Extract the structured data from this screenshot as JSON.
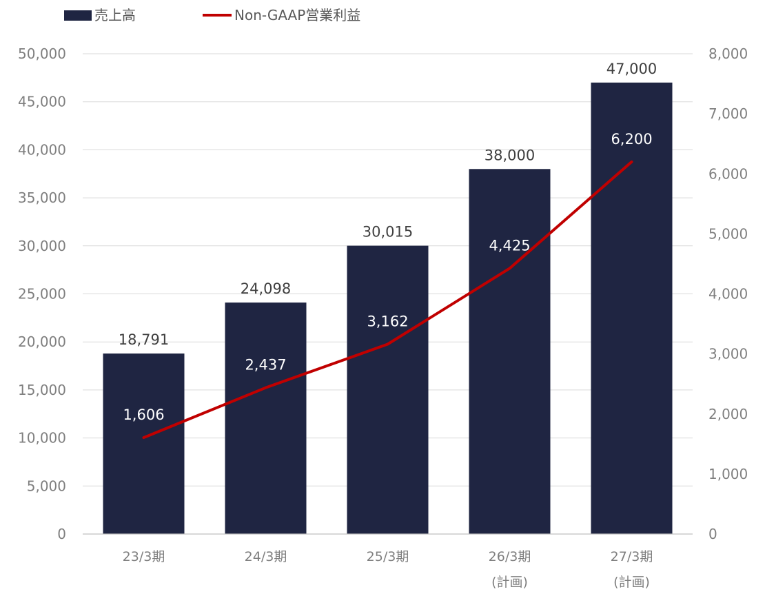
{
  "chart_data": {
    "type": "bar",
    "categories": [
      [
        "23/3期"
      ],
      [
        "24/3期"
      ],
      [
        "25/3期"
      ],
      [
        "26/3期",
        "(計画)"
      ],
      [
        "27/3期",
        "(計画)"
      ]
    ],
    "series": [
      {
        "name": "売上高",
        "type": "bar",
        "axis": "left",
        "color": "#1f2542",
        "values": [
          18791,
          24098,
          30015,
          38000,
          47000
        ],
        "value_labels": [
          "18,791",
          "24,098",
          "30,015",
          "38,000",
          "47,000"
        ]
      },
      {
        "name": "Non-GAAP営業利益",
        "type": "line",
        "axis": "right",
        "color": "#c00000",
        "values": [
          1606,
          2437,
          3162,
          4425,
          6200
        ],
        "value_labels": [
          "1,606",
          "2,437",
          "3,162",
          "4,425",
          "6,200"
        ]
      }
    ],
    "y_left": {
      "range": [
        0,
        50000
      ],
      "ticks": [
        0,
        5000,
        10000,
        15000,
        20000,
        25000,
        30000,
        35000,
        40000,
        45000,
        50000
      ],
      "tick_labels": [
        "0",
        "5,000",
        "10,000",
        "15,000",
        "20,000",
        "25,000",
        "30,000",
        "35,000",
        "40,000",
        "45,000",
        "50,000"
      ]
    },
    "y_right": {
      "range": [
        0,
        8000
      ],
      "ticks": [
        0,
        1000,
        2000,
        3000,
        4000,
        5000,
        6000,
        7000,
        8000
      ],
      "tick_labels": [
        "0",
        "1,000",
        "2,000",
        "3,000",
        "4,000",
        "5,000",
        "6,000",
        "7,000",
        "8,000"
      ]
    },
    "grid": true,
    "legend_position": "top-left"
  }
}
